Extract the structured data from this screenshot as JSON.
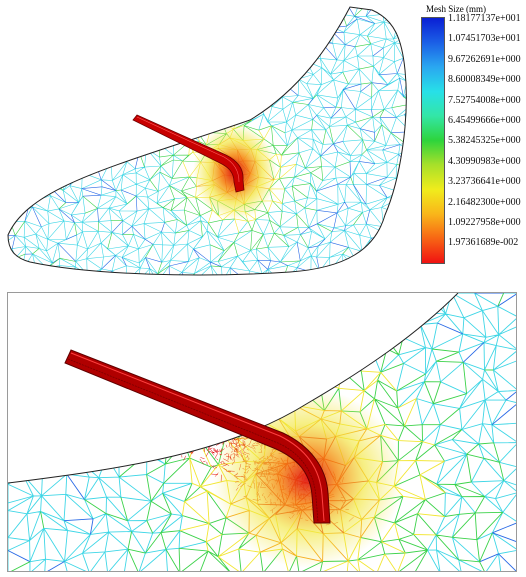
{
  "colorbar": {
    "title": "Mesh Size (mm)",
    "labels": [
      "1.18177137e+001",
      "1.07451703e+001",
      "9.67262691e+000",
      "8.60008349e+000",
      "7.52754008e+000",
      "6.45499666e+000",
      "5.38245325e+000",
      "4.30990983e+000",
      "3.23736641e+000",
      "2.16482300e+000",
      "1.09227958e+000",
      "1.97361689e-002"
    ],
    "colors": [
      "#0a1fd4",
      "#1b5fe6",
      "#2aa7f0",
      "#27e0e8",
      "#33e6a6",
      "#2ed43c",
      "#a8e02a",
      "#f0ec1c",
      "#f9b61a",
      "#f76514",
      "#f01212"
    ]
  },
  "mesh_colors": {
    "fine": "#e00000",
    "small": "#f6a41a",
    "medium": "#f2e634",
    "mid": "#3cd24a",
    "coarse": "#3fd6e6",
    "large": "#2a6ae6"
  }
}
